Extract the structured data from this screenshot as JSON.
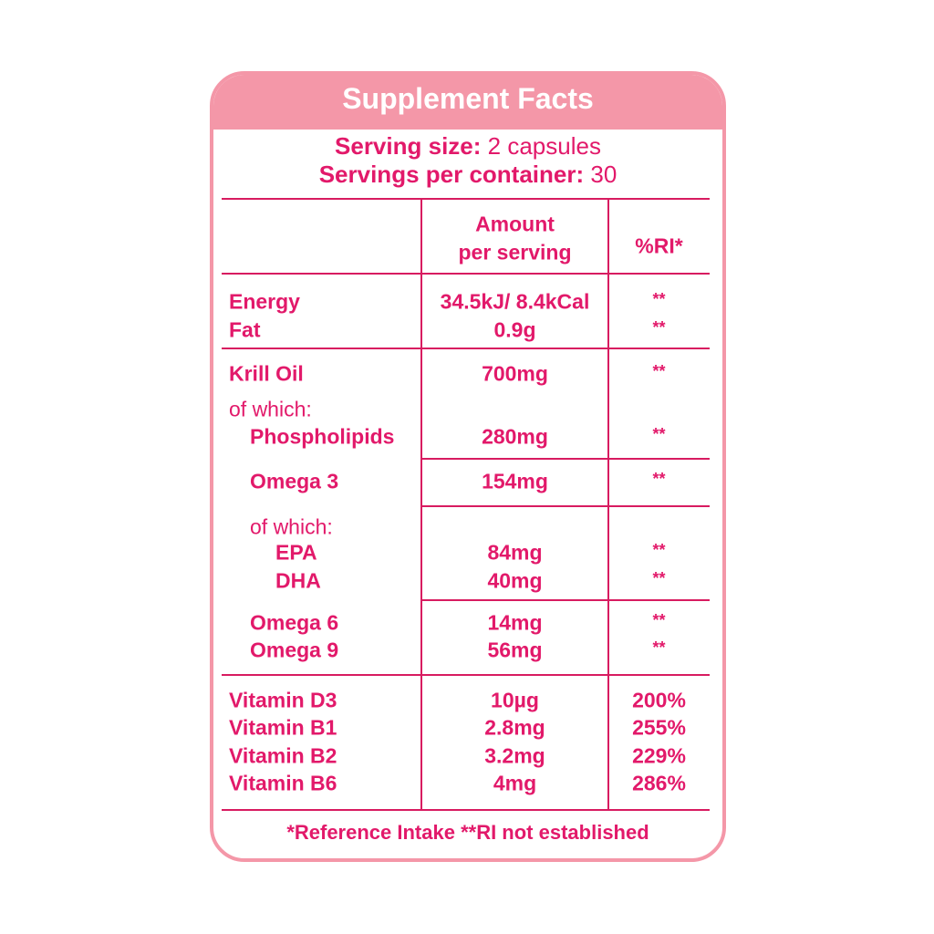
{
  "header": {
    "title": "Supplement Facts"
  },
  "serving": {
    "size_label": "Serving size:",
    "size_value": "2 capsules",
    "per_container_label": "Servings per container:",
    "per_container_value": "30"
  },
  "table": {
    "headers": {
      "amount": [
        "Amount",
        "per serving"
      ],
      "ri": "%RI*"
    },
    "rows": [
      {
        "label": "Energy",
        "amount": "34.5kJ/ 8.4kCal",
        "ri": "**"
      },
      {
        "label": "Fat",
        "amount": "0.9g",
        "ri": "**"
      },
      {
        "label": "Krill Oil",
        "amount": "700mg",
        "ri": "**"
      },
      {
        "label": "of which:"
      },
      {
        "label": "Phospholipids",
        "amount": "280mg",
        "ri": "**"
      },
      {
        "label": "Omega 3",
        "amount": "154mg",
        "ri": "**"
      },
      {
        "label": "of which:"
      },
      {
        "label": "EPA",
        "amount": "84mg",
        "ri": "**"
      },
      {
        "label": "DHA",
        "amount": "40mg",
        "ri": "**"
      },
      {
        "label": "Omega 6",
        "amount": "14mg",
        "ri": "**"
      },
      {
        "label": "Omega 9",
        "amount": "56mg",
        "ri": "**"
      },
      {
        "label": "Vitamin D3",
        "amount": "10µg",
        "ri": "200%"
      },
      {
        "label": "Vitamin B1",
        "amount": "2.8mg",
        "ri": "255%"
      },
      {
        "label": "Vitamin B2",
        "amount": "3.2mg",
        "ri": "229%"
      },
      {
        "label": "Vitamin B6",
        "amount": "4mg",
        "ri": "286%"
      }
    ]
  },
  "footnote": "*Reference Intake **RI not established"
}
